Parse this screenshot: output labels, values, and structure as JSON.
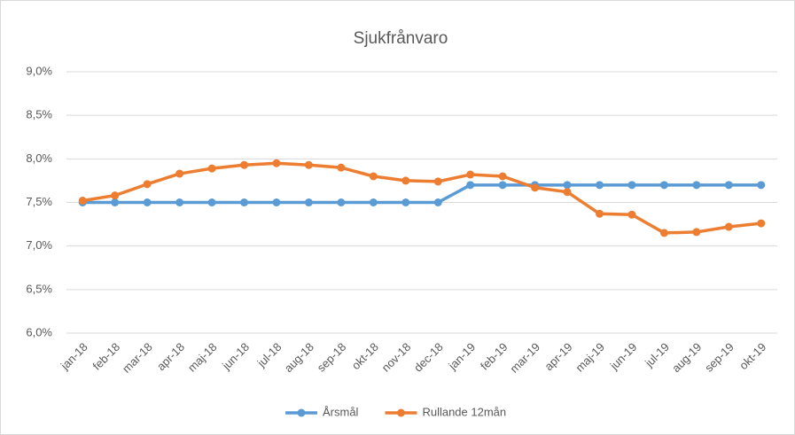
{
  "chart_data": {
    "type": "line",
    "title": "Sjukfrånvaro",
    "categories": [
      "jan-18",
      "feb-18",
      "mar-18",
      "apr-18",
      "maj-18",
      "jun-18",
      "jul-18",
      "aug-18",
      "sep-18",
      "okt-18",
      "nov-18",
      "dec-18",
      "jan-19",
      "feb-19",
      "mar-19",
      "apr-19",
      "maj-19",
      "jun-19",
      "jul-19",
      "aug-19",
      "sep-19",
      "okt-19"
    ],
    "series": [
      {
        "name": "Årsmål",
        "color": "#5b9bd5",
        "values": [
          7.5,
          7.5,
          7.5,
          7.5,
          7.5,
          7.5,
          7.5,
          7.5,
          7.5,
          7.5,
          7.5,
          7.5,
          7.7,
          7.7,
          7.7,
          7.7,
          7.7,
          7.7,
          7.7,
          7.7,
          7.7,
          7.7
        ]
      },
      {
        "name": "Rullande 12mån",
        "color": "#ed7d31",
        "values": [
          7.52,
          7.58,
          7.71,
          7.83,
          7.89,
          7.93,
          7.95,
          7.93,
          7.9,
          7.8,
          7.75,
          7.74,
          7.82,
          7.8,
          7.67,
          7.62,
          7.37,
          7.36,
          7.15,
          7.16,
          7.22,
          7.26
        ]
      }
    ],
    "ylim": [
      6,
      9
    ],
    "yticks": [
      {
        "value": 6,
        "label": "6,0%"
      },
      {
        "value": 6.5,
        "label": "6,5%"
      },
      {
        "value": 7,
        "label": "7,0%"
      },
      {
        "value": 7.5,
        "label": "7,5%"
      },
      {
        "value": 8,
        "label": "8,0%"
      },
      {
        "value": 8.5,
        "label": "8,5%"
      },
      {
        "value": 9,
        "label": "9,0%"
      }
    ],
    "grid": true,
    "legend": "bottom"
  }
}
